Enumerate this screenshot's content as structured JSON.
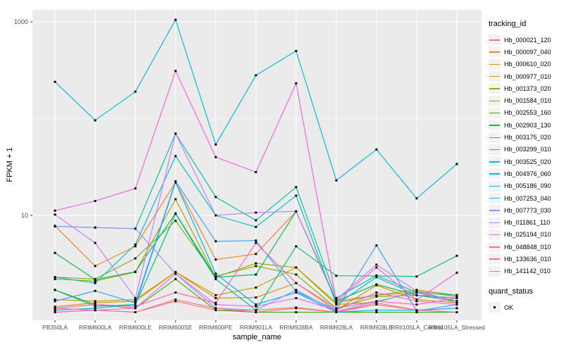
{
  "figure": {
    "y_axis_title": "FPKM + 1",
    "x_axis_title": "sample_name",
    "legend_title": "tracking_id",
    "quant_legend_title": "quant_status",
    "quant_items": [
      {
        "label": "OK",
        "marker": "black-square"
      }
    ],
    "colors": {
      "panel_bg": "#EBEBEB",
      "grid": "#FFFFFF",
      "tick_text": "#4D4D4D",
      "tick_mark": "#333333",
      "legend_key_bg": "#F2F2F2",
      "point": "#000000"
    }
  },
  "chart_data": {
    "type": "line",
    "title": "",
    "xlabel": "sample_name",
    "ylabel": "FPKM + 1",
    "x_type": "categorical",
    "y_scale": "log10",
    "y_tick_values": [
      1000,
      10
    ],
    "y_minor_grid_values": [
      100,
      1
    ],
    "ylim": [
      1,
      1330
    ],
    "grid": true,
    "legend_position": "right",
    "legend_title": "tracking_id",
    "point_marker": "black-square (quant_status = OK)",
    "categories": [
      "PB350LA",
      "RRIM600LA",
      "RRIM600LE",
      "RRIM600SE",
      "RRIM600PE",
      "RRIM901LA",
      "RRIM928BA",
      "RRIM928LA",
      "RRIM928LE",
      "RRII105LA_Control",
      "RRII105LA_Stressed"
    ],
    "series": [
      {
        "name": "Hb_000021_120",
        "color": "#F8766D",
        "values": [
          1.0,
          1.05,
          1.0,
          1.3,
          1.05,
          1.05,
          1.12,
          1.0,
          1.25,
          1.05,
          1.1
        ]
      },
      {
        "name": "Hb_000097_040",
        "color": "#EA8331",
        "values": [
          7.8,
          3.0,
          4.8,
          22,
          3.5,
          4.0,
          11,
          1.3,
          1.5,
          1.6,
          1.3
        ]
      },
      {
        "name": "Hb_000610_020",
        "color": "#D89000",
        "values": [
          1.14,
          1.25,
          1.3,
          2.6,
          1.4,
          1.42,
          2.0,
          1.05,
          1.9,
          1.35,
          1.25
        ]
      },
      {
        "name": "Hb_000977_010",
        "color": "#C09B00",
        "values": [
          1.35,
          1.3,
          1.35,
          2.6,
          1.5,
          1.8,
          2.9,
          1.2,
          1.27,
          1.65,
          1.45
        ]
      },
      {
        "name": "Hb_001373_020",
        "color": "#A3A500",
        "values": [
          2.2,
          2.1,
          2.6,
          14.7,
          2.3,
          3.2,
          2.9,
          1.25,
          1.5,
          1.7,
          1.5
        ]
      },
      {
        "name": "Hb_001584_010",
        "color": "#7CAE00",
        "values": [
          2.3,
          2.2,
          3.6,
          8.8,
          2.35,
          3.0,
          2.45,
          1.1,
          1.45,
          1.5,
          1.4
        ]
      },
      {
        "name": "Hb_002553_160",
        "color": "#39B600",
        "values": [
          1.7,
          1.2,
          1.1,
          2.2,
          1.05,
          1.0,
          1.0,
          1.0,
          1.0,
          1.0,
          1.0
        ]
      },
      {
        "name": "Hb_002903_130",
        "color": "#00BB4E",
        "values": [
          4.1,
          2.17,
          2.62,
          10.5,
          2.3,
          2.45,
          11,
          1.3,
          1.94,
          1.5,
          1.3
        ]
      },
      {
        "name": "Hb_003175_020",
        "color": "#00BF7D",
        "values": [
          1.7,
          1.15,
          1.2,
          10.4,
          2.2,
          1.05,
          4.8,
          2.38,
          2.37,
          2.34,
          3.83
        ]
      },
      {
        "name": "Hb_003299_010",
        "color": "#00C1A3",
        "values": [
          7.7,
          7.5,
          7.3,
          70,
          15.5,
          8.9,
          19.6,
          1.4,
          2.4,
          1.6,
          1.5
        ]
      },
      {
        "name": "Hb_003525_020",
        "color": "#00BFC4",
        "values": [
          2.3,
          2.0,
          5.0,
          41,
          10,
          7.6,
          16,
          1.2,
          2.3,
          1.5,
          1.4
        ]
      },
      {
        "name": "Hb_004976_060",
        "color": "#00BAE0",
        "values": [
          240,
          96,
          190,
          1050,
          54,
          280,
          500,
          23,
          48,
          15,
          34
        ]
      },
      {
        "name": "Hb_005186_090",
        "color": "#00B0F6",
        "values": [
          1.05,
          1.1,
          1.2,
          22,
          2.5,
          1.2,
          1.6,
          1.0,
          1.05,
          1.05,
          1.1
        ]
      },
      {
        "name": "Hb_007253_040",
        "color": "#35A2FF",
        "values": [
          1.3,
          1.66,
          1.25,
          22.5,
          5.4,
          5.5,
          1.63,
          1.06,
          4.9,
          1.03,
          1.2
        ]
      },
      {
        "name": "Hb_007773_030",
        "color": "#9590FF",
        "values": [
          7.7,
          7.5,
          7.3,
          2.5,
          1.1,
          1.05,
          1.7,
          1.02,
          1.3,
          1.6,
          1.25
        ]
      },
      {
        "name": "Hb_011861_110",
        "color": "#C77CFF",
        "values": [
          10.2,
          5.2,
          1.4,
          70,
          10,
          10.7,
          11,
          1.35,
          3.1,
          1.65,
          1.3
        ]
      },
      {
        "name": "Hb_025194_010",
        "color": "#E76BF3",
        "values": [
          1.1,
          1.05,
          1.1,
          2.5,
          1.2,
          1.15,
          1.4,
          1.05,
          1.6,
          1.3,
          1.2
        ]
      },
      {
        "name": "Hb_048848_010",
        "color": "#FA62DB",
        "values": [
          11.2,
          14.1,
          19,
          311,
          40,
          28,
          232,
          1.3,
          2.9,
          1.34,
          2.56
        ]
      },
      {
        "name": "Hb_133636_010",
        "color": "#FF62BC",
        "values": [
          1.1,
          1.2,
          1.15,
          1.6,
          1.25,
          5.2,
          2.0,
          1.1,
          1.3,
          1.2,
          1.4
        ]
      },
      {
        "name": "Hb_141142_010",
        "color": "#FF6A98",
        "values": [
          1.0,
          1.05,
          1.0,
          1.35,
          1.1,
          1.0,
          1.1,
          1.0,
          1.2,
          1.05,
          1.0
        ]
      }
    ]
  }
}
